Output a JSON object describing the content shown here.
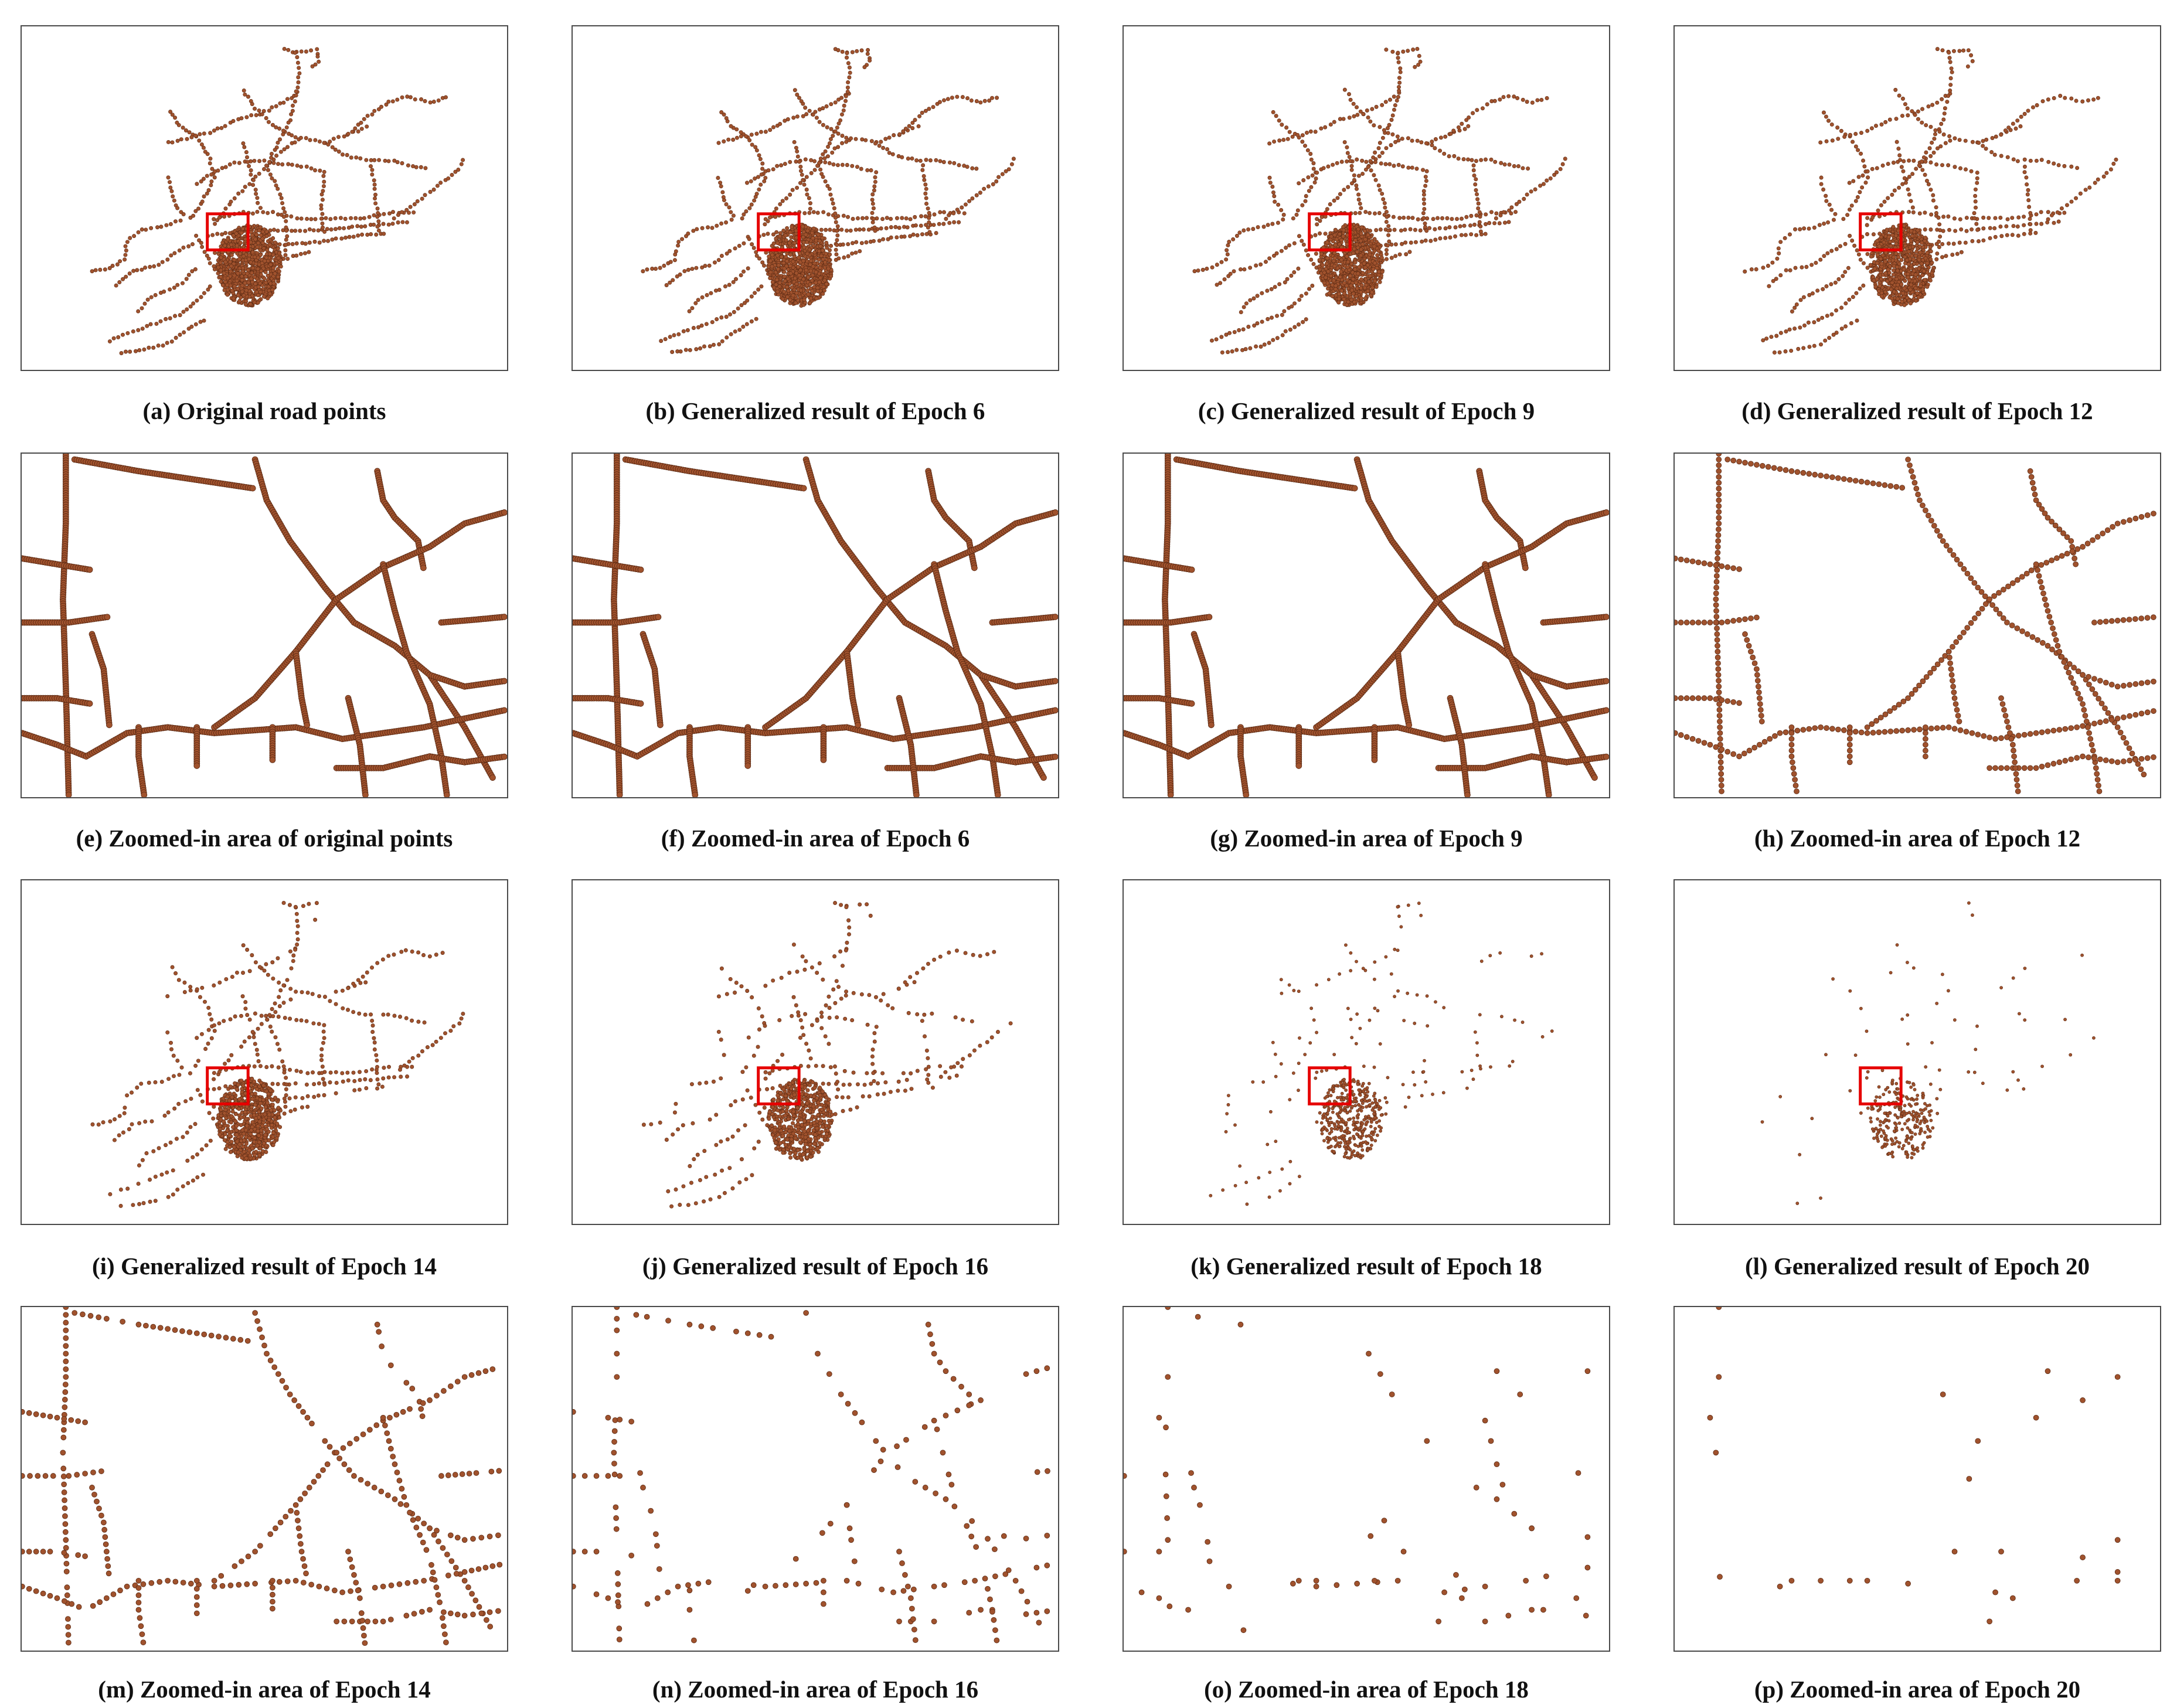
{
  "colors": {
    "road_point": "#a0522d",
    "road_point_edge": "#5a2a14",
    "highlight_box": "#e60000",
    "frame": "#4a4a4a"
  },
  "panels": [
    {
      "id": "a",
      "kind": "overview",
      "density": 1.0,
      "caption": "(a) Original road points"
    },
    {
      "id": "b",
      "kind": "overview",
      "density": 1.0,
      "caption": "(b) Generalized result of Epoch 6"
    },
    {
      "id": "c",
      "kind": "overview",
      "density": 0.95,
      "caption": "(c) Generalized result of Epoch 9"
    },
    {
      "id": "d",
      "kind": "overview",
      "density": 0.85,
      "caption": "(d) Generalized result of Epoch 12"
    },
    {
      "id": "e",
      "kind": "zoom",
      "density": 1.0,
      "caption": "(e) Zoomed-in area of original points"
    },
    {
      "id": "f",
      "kind": "zoom",
      "density": 1.0,
      "caption": "(f) Zoomed-in area of Epoch 6"
    },
    {
      "id": "g",
      "kind": "zoom",
      "density": 0.9,
      "caption": "(g) Zoomed-in area of Epoch 9"
    },
    {
      "id": "h",
      "kind": "zoom",
      "density": 0.6,
      "caption": "(h) Zoomed-in area of Epoch 12"
    },
    {
      "id": "i",
      "kind": "overview",
      "density": 0.75,
      "caption": "(i) Generalized result of Epoch 14"
    },
    {
      "id": "j",
      "kind": "overview",
      "density": 0.6,
      "caption": "(j) Generalized result of Epoch 16"
    },
    {
      "id": "k",
      "kind": "overview",
      "density": 0.4,
      "caption": "(k) Generalized result of Epoch 18"
    },
    {
      "id": "l",
      "kind": "overview",
      "density": 0.25,
      "caption": "(l) Generalized result of Epoch 20"
    },
    {
      "id": "m",
      "kind": "zoom",
      "density": 0.45,
      "caption": "(m) Zoomed-in area of Epoch 14"
    },
    {
      "id": "n",
      "kind": "zoom",
      "density": 0.3,
      "caption": "(n) Zoomed-in area of Epoch 16"
    },
    {
      "id": "o",
      "kind": "zoom",
      "density": 0.15,
      "caption": "(o) Zoomed-in area of Epoch 18"
    },
    {
      "id": "p",
      "kind": "zoom",
      "density": 0.08,
      "caption": "(p) Zoomed-in area of Epoch 20"
    }
  ]
}
